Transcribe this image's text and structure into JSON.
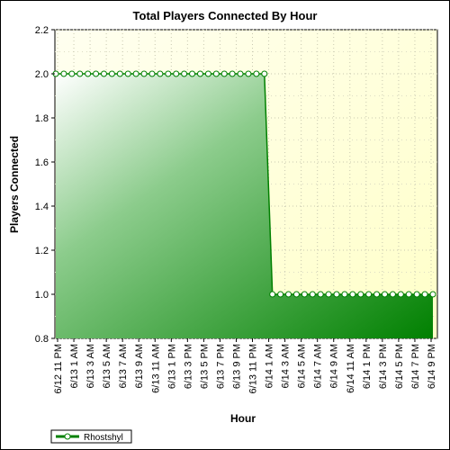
{
  "chart_data": {
    "type": "area",
    "title": "Total Players Connected By Hour",
    "xlabel": "Hour",
    "ylabel": "Players Connected",
    "ylim": [
      0.8,
      2.2
    ],
    "yticks": [
      "0.8",
      "1.0",
      "1.2",
      "1.4",
      "1.6",
      "1.8",
      "2.0",
      "2.2"
    ],
    "x_tick_labels": [
      "6/12 11 PM",
      "6/13 1 AM",
      "6/13 3 AM",
      "6/13 5 AM",
      "6/13 7 AM",
      "6/13 9 AM",
      "6/13 11 AM",
      "6/13 1 PM",
      "6/13 3 PM",
      "6/13 5 PM",
      "6/13 7 PM",
      "6/13 9 PM",
      "6/13 11 PM",
      "6/14 1 AM",
      "6/14 3 AM",
      "6/14 5 AM",
      "6/14 7 AM",
      "6/14 9 AM",
      "6/14 11 AM",
      "6/14 1 PM",
      "6/14 3 PM",
      "6/14 5 PM",
      "6/14 7 PM",
      "6/14 9 PM"
    ],
    "grid": true,
    "legend_position": "bottom-left",
    "series": [
      {
        "name": "Rhostshyl",
        "color": "#008000",
        "values": [
          2,
          2,
          2,
          2,
          2,
          2,
          2,
          2,
          2,
          2,
          2,
          2,
          2,
          2,
          2,
          2,
          2,
          2,
          2,
          2,
          2,
          2,
          2,
          2,
          2,
          2,
          2,
          1,
          1,
          1,
          1,
          1,
          1,
          1,
          1,
          1,
          1,
          1,
          1,
          1,
          1,
          1,
          1,
          1,
          1,
          1,
          1,
          1
        ]
      }
    ]
  }
}
